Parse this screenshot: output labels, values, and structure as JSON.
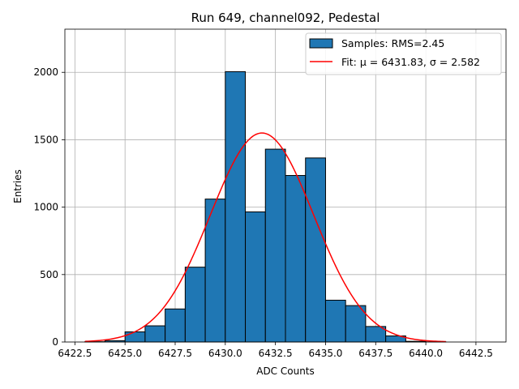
{
  "chart_data": {
    "type": "histogram",
    "title": "Run 649, channel092, Pedestal",
    "xlabel": "ADC Counts",
    "ylabel": "Entries",
    "xlim": [
      6422.0,
      6444.0
    ],
    "ylim": [
      0,
      2320
    ],
    "grid": true,
    "legend_position": "top-right",
    "xticks": [
      6422.5,
      6425.0,
      6427.5,
      6430.0,
      6432.5,
      6435.0,
      6437.5,
      6440.0,
      6442.5
    ],
    "xtick_labels": [
      "6422.5",
      "6425.0",
      "6427.5",
      "6430.0",
      "6432.5",
      "6435.0",
      "6437.5",
      "6440.0",
      "6442.5"
    ],
    "yticks": [
      0,
      500,
      1000,
      1500,
      2000
    ],
    "ytick_labels": [
      "0",
      "500",
      "1000",
      "1500",
      "2000"
    ],
    "bins": [
      {
        "left": 6423.0,
        "right": 6424.0,
        "count": 2
      },
      {
        "left": 6424.0,
        "right": 6425.0,
        "count": 10
      },
      {
        "left": 6425.0,
        "right": 6426.0,
        "count": 75
      },
      {
        "left": 6426.0,
        "right": 6427.0,
        "count": 120
      },
      {
        "left": 6427.0,
        "right": 6428.0,
        "count": 245
      },
      {
        "left": 6428.0,
        "right": 6429.0,
        "count": 555
      },
      {
        "left": 6429.0,
        "right": 6430.0,
        "count": 1060
      },
      {
        "left": 6430.0,
        "right": 6431.0,
        "count": 2005
      },
      {
        "left": 6431.0,
        "right": 6432.0,
        "count": 965
      },
      {
        "left": 6432.0,
        "right": 6433.0,
        "count": 1430
      },
      {
        "left": 6433.0,
        "right": 6434.0,
        "count": 1235
      },
      {
        "left": 6434.0,
        "right": 6435.0,
        "count": 1365
      },
      {
        "left": 6435.0,
        "right": 6436.0,
        "count": 310
      },
      {
        "left": 6436.0,
        "right": 6437.0,
        "count": 270
      },
      {
        "left": 6437.0,
        "right": 6438.0,
        "count": 115
      },
      {
        "left": 6438.0,
        "right": 6439.0,
        "count": 45
      },
      {
        "left": 6439.0,
        "right": 6440.0,
        "count": 5
      },
      {
        "left": 6440.0,
        "right": 6441.0,
        "count": 1
      }
    ],
    "fit": {
      "mu": 6431.83,
      "sigma": 2.582,
      "amplitude": 1550,
      "x_range": [
        6423.0,
        6441.0
      ]
    },
    "series": [
      {
        "name": "Samples: RMS=2.45",
        "kind": "bar",
        "color": "#1f77b4",
        "edgecolor": "#000000"
      },
      {
        "name": "Fit: μ = 6431.83, σ = 2.582",
        "kind": "line",
        "color": "#ff0000"
      }
    ]
  }
}
